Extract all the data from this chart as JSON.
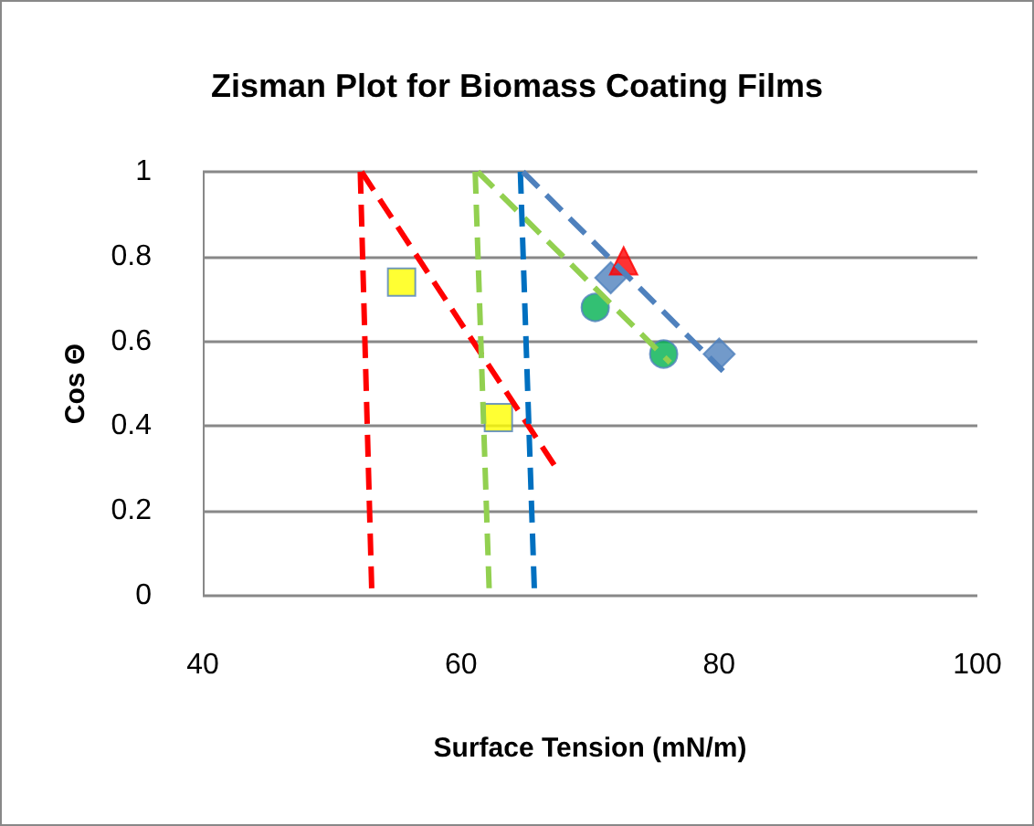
{
  "chart_data": {
    "type": "scatter",
    "title": "Zisman Plot for Biomass Coating Films",
    "xlabel": "Surface Tension (mN/m)",
    "ylabel": "Cos Θ",
    "xlim": [
      40,
      100
    ],
    "xticks": [
      40,
      60,
      80,
      100
    ],
    "ylim": [
      0,
      1
    ],
    "yticks": [
      0,
      0.2,
      0.4,
      0.6,
      0.8,
      1
    ],
    "grid": "y",
    "series": [
      {
        "type": "line",
        "color": "#ff0000",
        "marker": "none",
        "line_style": "dashed",
        "x": [
          52.2,
          53.1
        ],
        "values": [
          1,
          0
        ]
      },
      {
        "type": "line",
        "color": "#ff0000",
        "marker": "none",
        "line_style": "dashed",
        "x": [
          52.3,
          67.4
        ],
        "values": [
          1,
          0.3
        ]
      },
      {
        "type": "line",
        "color": "#92d050",
        "marker": "none",
        "line_style": "dashed",
        "x": [
          61.1,
          62.2
        ],
        "values": [
          1,
          0
        ]
      },
      {
        "type": "line",
        "color": "#92d050",
        "marker": "none",
        "line_style": "dashed",
        "x": [
          61.3,
          76.2
        ],
        "values": [
          1,
          0.55
        ]
      },
      {
        "type": "line",
        "color": "#0070c0",
        "marker": "none",
        "line_style": "dashed",
        "x": [
          64.6,
          65.7
        ],
        "values": [
          1,
          0
        ]
      },
      {
        "type": "line",
        "color": "#4f81bd",
        "marker": "none",
        "line_style": "dashed",
        "x": [
          64.8,
          80.3
        ],
        "values": [
          1,
          0.53
        ]
      },
      {
        "color": "#ffff00",
        "marker": "square",
        "x": [
          55.4,
          62.9
        ],
        "values": [
          0.74,
          0.42
        ]
      },
      {
        "color": "#00b050",
        "marker": "circle",
        "x": [
          70.4,
          75.7
        ],
        "values": [
          0.68,
          0.57
        ]
      },
      {
        "color": "#4f81bd",
        "marker": "diamond",
        "x": [
          71.6,
          80
        ],
        "values": [
          0.75,
          0.57
        ]
      },
      {
        "color": "#ff0000",
        "marker": "triangle",
        "x": [
          72.6
        ],
        "values": [
          0.79
        ]
      }
    ]
  }
}
